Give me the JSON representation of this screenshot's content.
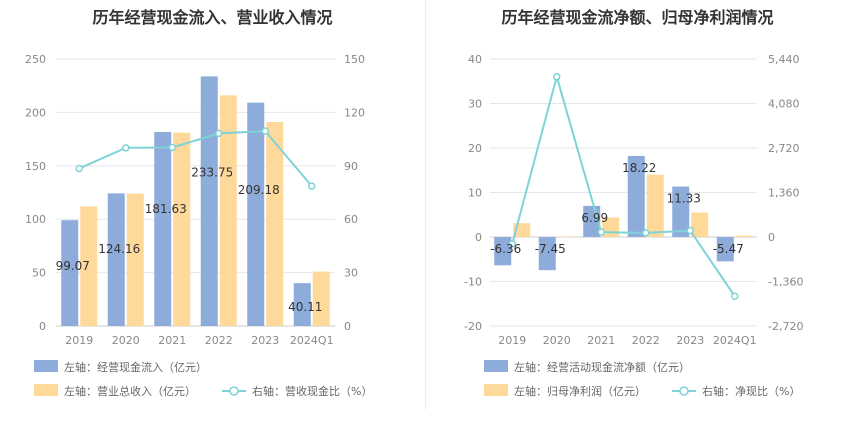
{
  "chart_data": [
    {
      "type": "bar",
      "title": "历年经营现金流入、营业收入情况",
      "categories": [
        "2019",
        "2020",
        "2021",
        "2022",
        "2023",
        "2024Q1"
      ],
      "left_axis": {
        "ticks": [
          "0",
          "50",
          "100",
          "150",
          "200",
          "250"
        ],
        "range": [
          0,
          250
        ]
      },
      "right_axis": {
        "ticks": [
          "0",
          "30",
          "60",
          "90",
          "120",
          "150"
        ],
        "range": [
          0,
          150
        ]
      },
      "series": [
        {
          "name": "左轴：经营现金流入（亿元）",
          "axis": "left",
          "type": "bar",
          "color": "#8eacd9",
          "values": [
            99.07,
            124.16,
            181.63,
            233.75,
            209.18,
            40.11
          ],
          "labels": [
            "99.07",
            "124.16",
            "181.63",
            "233.75",
            "209.18",
            "40.11"
          ]
        },
        {
          "name": "左轴：营业总收入（亿元）",
          "axis": "left",
          "type": "bar",
          "color": "#ffd99a",
          "values": [
            112,
            124,
            181,
            216,
            191,
            51
          ]
        },
        {
          "name": "右轴：营收现金比（%）",
          "axis": "right",
          "type": "line",
          "color": "#7fd3d8",
          "values": [
            88.5,
            100.1,
            100.3,
            108.2,
            109.5,
            78.6
          ]
        }
      ],
      "grid": true,
      "legend_position": "bottom"
    },
    {
      "type": "bar",
      "title": "历年经营现金流净额、归母净利润情况",
      "categories": [
        "2019",
        "2020",
        "2021",
        "2022",
        "2023",
        "2024Q1"
      ],
      "left_axis": {
        "ticks": [
          "-20",
          "-10",
          "0",
          "10",
          "20",
          "30",
          "40"
        ],
        "range": [
          -20,
          40
        ]
      },
      "right_axis": {
        "ticks": [
          "-2,720",
          "-1,360",
          "0",
          "1,360",
          "2,720",
          "4,080",
          "5,440"
        ],
        "range": [
          -2720,
          5440
        ]
      },
      "series": [
        {
          "name": "左轴：经营活动现金流净额（亿元）",
          "axis": "left",
          "type": "bar",
          "color": "#8eacd9",
          "values": [
            -6.36,
            -7.45,
            6.99,
            18.22,
            11.33,
            -5.47
          ],
          "labels": [
            "-6.36",
            "-7.45",
            "6.99",
            "18.22",
            "11.33",
            "-5.47"
          ]
        },
        {
          "name": "左轴：归母净利润（亿元）",
          "axis": "left",
          "type": "bar",
          "color": "#ffd99a",
          "values": [
            3.1,
            0.1,
            4.4,
            14.0,
            5.5,
            0.3
          ]
        },
        {
          "name": "右轴：净现比（%）",
          "axis": "right",
          "type": "line",
          "color": "#7fd3d8",
          "values": [
            -205,
            4900,
            150,
            125,
            195,
            -1810
          ]
        }
      ],
      "grid": true,
      "legend_position": "bottom"
    }
  ]
}
